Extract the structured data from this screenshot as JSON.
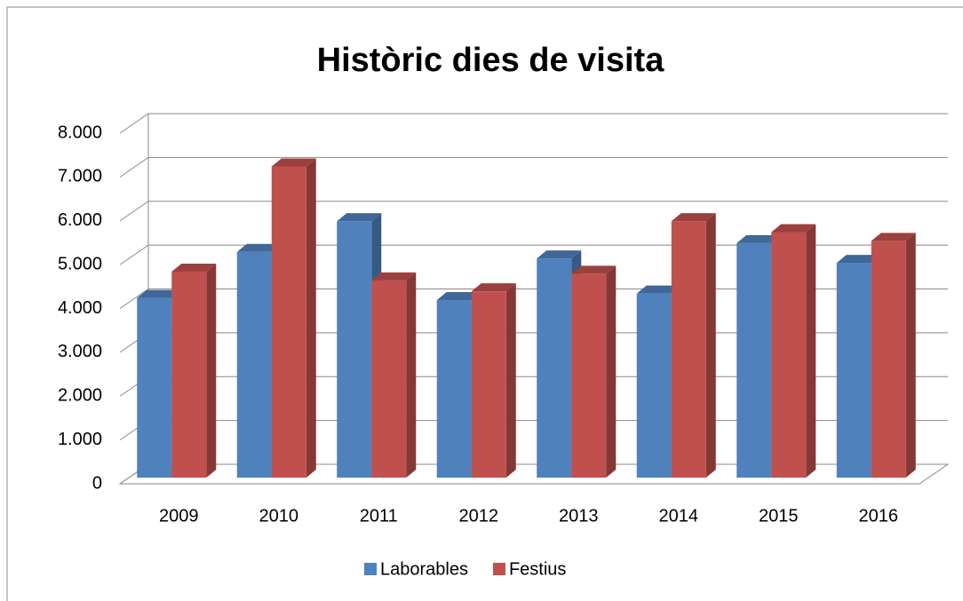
{
  "chart_data": {
    "type": "bar3d",
    "title": "Històric dies de visita",
    "categories": [
      "2009",
      "2010",
      "2011",
      "2012",
      "2013",
      "2014",
      "2015",
      "2016"
    ],
    "series": [
      {
        "name": "Laborables",
        "color": "#4f81bd",
        "values": [
          4100,
          5150,
          5850,
          4050,
          5000,
          4200,
          5350,
          4900
        ]
      },
      {
        "name": "Festius",
        "color": "#c0504d",
        "values": [
          4700,
          7100,
          4500,
          4250,
          4650,
          5850,
          5600,
          5400
        ]
      }
    ],
    "ylim": [
      0,
      8000
    ],
    "yticks": [
      0,
      {
        "value": 1000,
        "label": "1.000"
      },
      {
        "value": 2000,
        "label": "2.000"
      },
      {
        "value": 3000,
        "label": "3.000"
      },
      {
        "value": 4000,
        "label": "4.000"
      },
      {
        "value": 5000,
        "label": "5.000"
      },
      {
        "value": 6000,
        "label": "6.000"
      },
      {
        "value": 7000,
        "label": "7.000"
      },
      {
        "value": 8000,
        "label": "8.000"
      }
    ],
    "grid": true,
    "legend": "bottom"
  }
}
